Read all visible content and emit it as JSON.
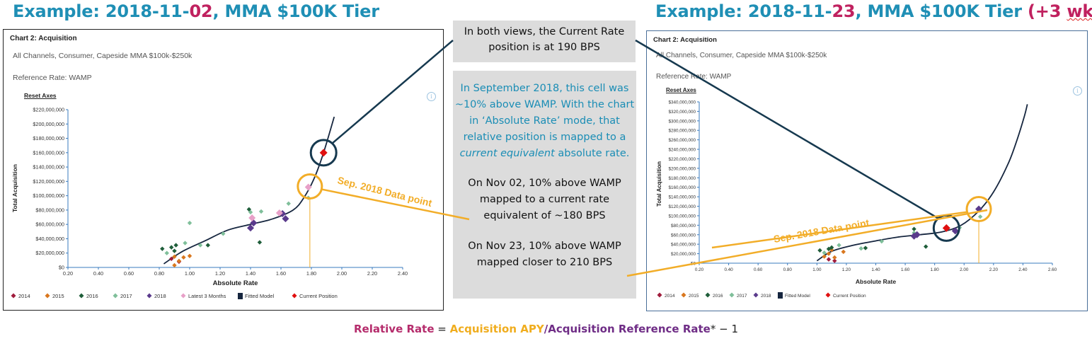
{
  "headings": {
    "left": {
      "prefix": "Example: 2018-11-",
      "day": "02",
      "suffix": ", MMA $100K Tier"
    },
    "right": {
      "prefix": "Example: 2018-11-",
      "day": "23",
      "suffix": ", MMA $100K Tier",
      "extra_prefix": " (+3 ",
      "extra_word": "wks",
      "extra_suffix": ")"
    }
  },
  "callouts": {
    "top": "In both views, the Current Rate position is at 190 BPS",
    "main_part1": "In September 2018, this cell was ~10% above WAMP. With the chart in ‘Absolute Rate’ mode, that relative position is mapped to a",
    "main_italic": "current equivalent",
    "main_part2": "absolute rate.",
    "nov02": "On Nov 02, 10% above WAMP mapped to a current rate equivalent of ~180 BPS",
    "nov23": "On Nov 23, 10% above WAMP mapped closer to 210 BPS"
  },
  "formula": {
    "relative": "Relative Rate",
    "eq": " = ",
    "apy": "Acquisition APY",
    "slash": "/",
    "ref": "Acquisition Reference Rate",
    "tail": "* − 1"
  },
  "annotation_label": "Sep. 2018 Data point",
  "colors": {
    "teal": "#1f8fb5",
    "magenta": "#c0215f",
    "orange": "#f2ad28",
    "navy": "#16394f",
    "callout_bg": "#dcdcdc"
  },
  "chart_data": [
    {
      "type": "scatter",
      "title": "Chart 2: Acquisition",
      "subtitle": "All Channels, Consumer, Capeside MMA $100k-$250k",
      "reference": "Reference Rate: WAMP",
      "reset_link": "Reset Axes",
      "xlabel": "Absolute Rate",
      "ylabel": "Total Acquisition",
      "xlim": [
        0.2,
        2.4
      ],
      "ylim": [
        0,
        220000000
      ],
      "x_ticks": [
        "0.20",
        "0.40",
        "0.60",
        "0.80",
        "1.00",
        "1.20",
        "1.40",
        "1.60",
        "1.80",
        "2.00",
        "2.20",
        "2.40"
      ],
      "y_ticks": [
        "$0",
        "$20,000,000",
        "$40,000,000",
        "$60,000,000",
        "$80,000,000",
        "$100,000,000",
        "$120,000,000",
        "$140,000,000",
        "$160,000,000",
        "$180,000,000",
        "$200,000,000",
        "$220,000,000"
      ],
      "legend": [
        {
          "label": "2014",
          "color": "#a01c3c",
          "shape": "diamond"
        },
        {
          "label": "2015",
          "color": "#d9771e",
          "shape": "diamond"
        },
        {
          "label": "2016",
          "color": "#1f5e3a",
          "shape": "diamond"
        },
        {
          "label": "2017",
          "color": "#7fbf9a",
          "shape": "diamond"
        },
        {
          "label": "2018",
          "color": "#5a3a8c",
          "shape": "diamond"
        },
        {
          "label": "Latest 3 Months",
          "color": "#e8a0c8",
          "shape": "diamond"
        },
        {
          "label": "Fitted Model",
          "color": "#16263f",
          "shape": "square"
        },
        {
          "label": "Current Position",
          "color": "#e01010",
          "shape": "diamond"
        }
      ],
      "series": [
        {
          "name": "2014",
          "color": "#a01c3c",
          "points": [
            [
              0.88,
              12000000
            ],
            [
              0.93,
              8000000
            ]
          ]
        },
        {
          "name": "2015",
          "color": "#d9771e",
          "points": [
            [
              0.9,
              15000000
            ],
            [
              0.93,
              9000000
            ],
            [
              0.96,
              14000000
            ],
            [
              1.0,
              16000000
            ],
            [
              0.9,
              3000000
            ]
          ]
        },
        {
          "name": "2016",
          "color": "#1f5e3a",
          "points": [
            [
              0.82,
              26000000
            ],
            [
              0.88,
              28000000
            ],
            [
              0.91,
              31000000
            ],
            [
              1.12,
              31000000
            ],
            [
              1.39,
              81000000
            ],
            [
              1.46,
              35000000
            ],
            [
              0.9,
              23000000
            ]
          ]
        },
        {
          "name": "2017",
          "color": "#7fbf9a",
          "points": [
            [
              0.85,
              20000000
            ],
            [
              0.97,
              34000000
            ],
            [
              1.0,
              62000000
            ],
            [
              1.07,
              31000000
            ],
            [
              1.22,
              47000000
            ],
            [
              1.4,
              77000000
            ],
            [
              1.47,
              78000000
            ],
            [
              1.65,
              89000000
            ],
            [
              1.78,
              97000000
            ]
          ]
        },
        {
          "name": "2018",
          "color": "#5a3a8c",
          "points": [
            [
              1.4,
              55000000
            ],
            [
              1.42,
              62000000
            ],
            [
              1.61,
              75000000
            ],
            [
              1.63,
              68000000
            ]
          ]
        },
        {
          "name": "Latest 3 Months",
          "color": "#e8a0c8",
          "points": [
            [
              1.41,
              69000000
            ],
            [
              1.59,
              76000000
            ],
            [
              1.78,
              112000000
            ]
          ]
        },
        {
          "name": "Current Position",
          "color": "#e01010",
          "points": [
            [
              1.88,
              160000000
            ]
          ]
        }
      ],
      "fitted_model": [
        [
          0.83,
          5000000
        ],
        [
          0.95,
          22000000
        ],
        [
          1.1,
          37000000
        ],
        [
          1.25,
          52000000
        ],
        [
          1.4,
          60000000
        ],
        [
          1.55,
          68000000
        ],
        [
          1.68,
          80000000
        ],
        [
          1.75,
          97000000
        ],
        [
          1.82,
          125000000
        ],
        [
          1.88,
          160000000
        ],
        [
          1.95,
          210000000
        ]
      ],
      "annotations": [
        {
          "text": "Sep. 2018 Data point",
          "target": [
            1.79,
            113000000
          ]
        },
        {
          "text": "",
          "target": [
            1.88,
            160000000
          ],
          "marker": "circle"
        }
      ]
    },
    {
      "type": "scatter",
      "title": "Chart 2: Acquisition",
      "subtitle": "All Channels, Consumer, Capeside MMA $100k-$250k",
      "reference": "Reference Rate: WAMP",
      "reset_link": "Reset Axes",
      "xlabel": "Absolute Rate",
      "ylabel": "Total Acquisition",
      "xlim": [
        0.2,
        2.6
      ],
      "ylim": [
        0,
        340000000
      ],
      "x_ticks": [
        "0.20",
        "0.40",
        "0.60",
        "0.80",
        "1.00",
        "1.20",
        "1.40",
        "1.60",
        "1.80",
        "2.00",
        "2.20",
        "2.40",
        "2.60"
      ],
      "y_ticks": [
        "$0",
        "$20,000,000",
        "$40,000,000",
        "$60,000,000",
        "$80,000,000",
        "$100,000,000",
        "$120,000,000",
        "$140,000,000",
        "$160,000,000",
        "$180,000,000",
        "$200,000,000",
        "$220,000,000",
        "$240,000,000",
        "$260,000,000",
        "$280,000,000",
        "$300,000,000",
        "$320,000,000",
        "$340,000,000"
      ],
      "legend": [
        {
          "label": "2014",
          "color": "#a01c3c",
          "shape": "diamond"
        },
        {
          "label": "2015",
          "color": "#d9771e",
          "shape": "diamond"
        },
        {
          "label": "2016",
          "color": "#1f5e3a",
          "shape": "diamond"
        },
        {
          "label": "2017",
          "color": "#7fbf9a",
          "shape": "diamond"
        },
        {
          "label": "2018",
          "color": "#5a3a8c",
          "shape": "diamond"
        },
        {
          "label": "Fitted Model",
          "color": "#16263f",
          "shape": "square"
        },
        {
          "label": "Current Position",
          "color": "#e01010",
          "shape": "diamond"
        }
      ],
      "series": [
        {
          "name": "2014",
          "color": "#a01c3c",
          "points": [
            [
              1.08,
              8000000
            ],
            [
              1.12,
              5000000
            ]
          ]
        },
        {
          "name": "2015",
          "color": "#d9771e",
          "points": [
            [
              1.05,
              14000000
            ],
            [
              1.08,
              20000000
            ],
            [
              1.12,
              12000000
            ],
            [
              1.18,
              24000000
            ],
            [
              1.1,
              28000000
            ]
          ]
        },
        {
          "name": "2016",
          "color": "#1f5e3a",
          "points": [
            [
              1.02,
              27000000
            ],
            [
              1.08,
              30000000
            ],
            [
              1.1,
              33000000
            ],
            [
              1.33,
              32000000
            ],
            [
              1.66,
              72000000
            ],
            [
              1.74,
              35000000
            ]
          ]
        },
        {
          "name": "2017",
          "color": "#7fbf9a",
          "points": [
            [
              1.05,
              22000000
            ],
            [
              1.15,
              38000000
            ],
            [
              1.3,
              31000000
            ],
            [
              1.44,
              46000000
            ],
            [
              1.66,
              64000000
            ],
            [
              1.97,
              75000000
            ],
            [
              2.11,
              98000000
            ]
          ]
        },
        {
          "name": "2018",
          "color": "#5a3a8c",
          "points": [
            [
              1.66,
              57000000
            ],
            [
              1.68,
              60000000
            ],
            [
              1.94,
              68000000
            ],
            [
              2.1,
              114000000
            ],
            [
              1.88,
              74000000
            ]
          ]
        },
        {
          "name": "Current Position",
          "color": "#e01010",
          "points": [
            [
              1.88,
              74000000
            ]
          ]
        }
      ],
      "fitted_model": [
        [
          1.0,
          5000000
        ],
        [
          1.1,
          25000000
        ],
        [
          1.25,
          38000000
        ],
        [
          1.4,
          47000000
        ],
        [
          1.55,
          55000000
        ],
        [
          1.7,
          60000000
        ],
        [
          1.85,
          66000000
        ],
        [
          1.98,
          80000000
        ],
        [
          2.1,
          110000000
        ],
        [
          2.2,
          150000000
        ],
        [
          2.3,
          210000000
        ],
        [
          2.36,
          260000000
        ],
        [
          2.41,
          310000000
        ],
        [
          2.43,
          335000000
        ]
      ],
      "annotations": [
        {
          "text": "Sep. 2018 Data point",
          "target": [
            2.1,
            114000000
          ]
        },
        {
          "text": "",
          "target": [
            1.88,
            74000000
          ],
          "marker": "circle"
        }
      ]
    }
  ]
}
